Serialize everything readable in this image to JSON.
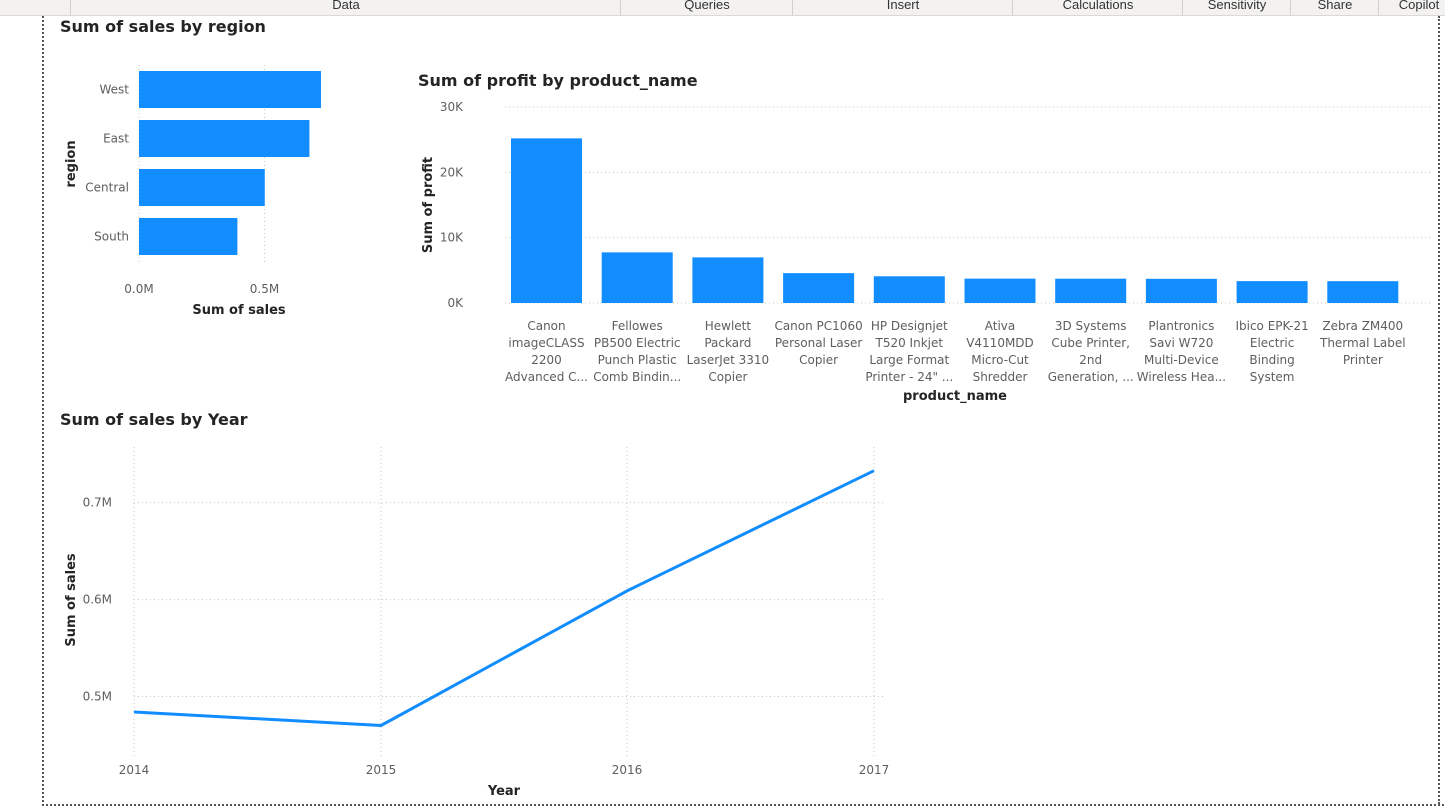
{
  "ribbon": {
    "tabs": [
      {
        "label": "Data",
        "left": 70,
        "width": 550
      },
      {
        "label": "Queries",
        "left": 620,
        "width": 172
      },
      {
        "label": "Insert",
        "left": 792,
        "width": 220
      },
      {
        "label": "Calculations",
        "left": 1012,
        "width": 170
      },
      {
        "label": "Sensitivity",
        "left": 1182,
        "width": 108
      },
      {
        "label": "Share",
        "left": 1290,
        "width": 88
      },
      {
        "label": "Copilot",
        "left": 1378,
        "width": 80
      }
    ]
  },
  "chart_data": [
    {
      "id": "region",
      "type": "bar",
      "orientation": "horizontal",
      "title": "Sum of sales by region",
      "xlabel": "Sum of sales",
      "ylabel": "region",
      "categories": [
        "West",
        "East",
        "Central",
        "South"
      ],
      "values": [
        725000,
        679000,
        501000,
        392000
      ],
      "xlim": [
        0,
        1000000
      ],
      "xticks": [
        "0.0M",
        "0.5M"
      ],
      "color": "#118DFF"
    },
    {
      "id": "product",
      "type": "bar",
      "title": "Sum of profit by product_name",
      "xlabel": "product_name",
      "ylabel": "Sum of profit",
      "categories": [
        [
          "Canon",
          "imageCLASS",
          "2200",
          "Advanced C..."
        ],
        [
          "Fellowes",
          "PB500 Electric",
          "Punch Plastic",
          "Comb Bindin..."
        ],
        [
          "Hewlett",
          "Packard",
          "LaserJet 3310",
          "Copier"
        ],
        [
          "Canon PC1060",
          "Personal Laser",
          "Copier"
        ],
        [
          "HP Designjet",
          "T520 Inkjet",
          "Large Format",
          "Printer - 24\" ..."
        ],
        [
          "Ativa",
          "V4110MDD",
          "Micro-Cut",
          "Shredder"
        ],
        [
          "3D Systems",
          "Cube Printer,",
          "2nd",
          "Generation, ..."
        ],
        [
          "Plantronics",
          "Savi W720",
          "Multi-Device",
          "Wireless Hea..."
        ],
        [
          "Ibico EPK-21",
          "Electric",
          "Binding",
          "System"
        ],
        [
          "Zebra ZM400",
          "Thermal Label",
          "Printer"
        ]
      ],
      "values": [
        25200,
        7750,
        6980,
        4570,
        4090,
        3730,
        3720,
        3700,
        3350,
        3340
      ],
      "ylim": [
        0,
        30000
      ],
      "yticks": [
        {
          "v": 0,
          "label": "0K"
        },
        {
          "v": 10000,
          "label": "10K"
        },
        {
          "v": 20000,
          "label": "20K"
        },
        {
          "v": 30000,
          "label": "30K"
        }
      ],
      "color": "#118DFF"
    },
    {
      "id": "year",
      "type": "line",
      "title": "Sum of sales by Year",
      "xlabel": "Year",
      "ylabel": "Sum of sales",
      "x": [
        "2014",
        "2015",
        "2016",
        "2017"
      ],
      "values": [
        484000,
        470000,
        609000,
        733000
      ],
      "ylim": [
        0.4375,
        0.7575
      ],
      "ylim_units": [
        437500,
        757500
      ],
      "yticks": [
        {
          "v": 500000,
          "label": "0.5M"
        },
        {
          "v": 600000,
          "label": "0.6M"
        },
        {
          "v": 700000,
          "label": "0.7M"
        }
      ],
      "color": "#118DFF"
    }
  ]
}
